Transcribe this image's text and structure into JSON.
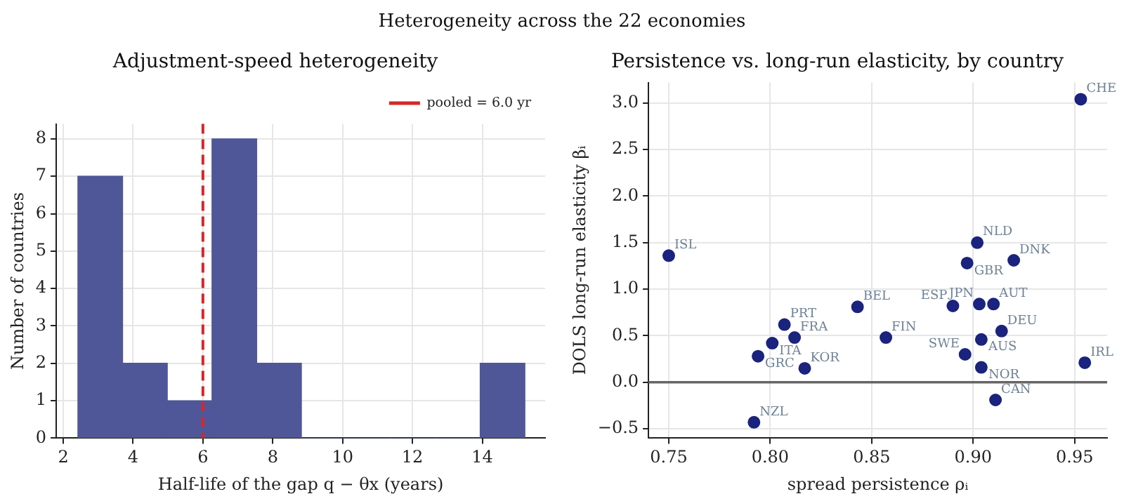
{
  "chart_data": [
    {
      "type": "other",
      "title": "Heterogeneity across the 22 economies"
    },
    {
      "type": "histogram",
      "title": "Adjustment-speed heterogeneity",
      "xlabel": "Half-life of the gap q − θx (years)",
      "ylabel": "Number of countries",
      "bins": [
        2.42,
        3.7,
        4.98,
        6.26,
        7.54,
        8.82,
        10.1,
        11.38,
        12.66,
        13.94,
        15.22
      ],
      "values": [
        7,
        2,
        1,
        8,
        2,
        0,
        0,
        0,
        0,
        2
      ],
      "color": "#4f5799",
      "xlim": [
        1.8,
        15.8
      ],
      "xticks": [
        2,
        4,
        6,
        8,
        10,
        12,
        14
      ],
      "ylim": [
        0,
        8.4
      ],
      "yticks": [
        0,
        1,
        2,
        3,
        4,
        5,
        6,
        7,
        8
      ],
      "ref_lines": [
        {
          "axis": "x",
          "value": 6.0,
          "label": "pooled = 6.0 yr",
          "color": "#d62728",
          "line_style": "dashed"
        }
      ],
      "grid": true,
      "legend": "top right"
    },
    {
      "type": "scatter",
      "title": "Persistence vs. long-run elasticity, by country",
      "xlabel": "spread persistence ρᵢ",
      "ylabel": "DOLS long-run elasticity βᵢ",
      "x": [
        0.953,
        0.75,
        0.902,
        0.897,
        0.92,
        0.843,
        0.89,
        0.903,
        0.91,
        0.807,
        0.812,
        0.801,
        0.794,
        0.857,
        0.914,
        0.904,
        0.896,
        0.904,
        0.955,
        0.817,
        0.911,
        0.792
      ],
      "values": [
        3.04,
        1.36,
        1.5,
        1.28,
        1.31,
        0.81,
        0.82,
        0.84,
        0.84,
        0.62,
        0.48,
        0.42,
        0.28,
        0.48,
        0.55,
        0.46,
        0.3,
        0.16,
        0.21,
        0.15,
        -0.19,
        -0.43
      ],
      "color": "#1a237e",
      "marker": "circle",
      "annotations": [
        {
          "text": "CHE",
          "x": 0.953,
          "y": 3.04
        },
        {
          "text": "ISL",
          "x": 0.75,
          "y": 1.36
        },
        {
          "text": "NLD",
          "x": 0.902,
          "y": 1.5
        },
        {
          "text": "GBR",
          "x": 0.897,
          "y": 1.28
        },
        {
          "text": "DNK",
          "x": 0.92,
          "y": 1.31
        },
        {
          "text": "BEL",
          "x": 0.843,
          "y": 0.81
        },
        {
          "text": "ESP",
          "x": 0.89,
          "y": 0.82
        },
        {
          "text": "JPN",
          "x": 0.903,
          "y": 0.84
        },
        {
          "text": "AUT",
          "x": 0.91,
          "y": 0.84
        },
        {
          "text": "PRT",
          "x": 0.807,
          "y": 0.62
        },
        {
          "text": "FRA",
          "x": 0.812,
          "y": 0.48
        },
        {
          "text": "ITA",
          "x": 0.801,
          "y": 0.42
        },
        {
          "text": "GRC",
          "x": 0.794,
          "y": 0.28
        },
        {
          "text": "FIN",
          "x": 0.857,
          "y": 0.48
        },
        {
          "text": "DEU",
          "x": 0.914,
          "y": 0.55
        },
        {
          "text": "AUS",
          "x": 0.904,
          "y": 0.46
        },
        {
          "text": "SWE",
          "x": 0.896,
          "y": 0.3
        },
        {
          "text": "NOR",
          "x": 0.904,
          "y": 0.16
        },
        {
          "text": "IRL",
          "x": 0.955,
          "y": 0.21
        },
        {
          "text": "KOR",
          "x": 0.817,
          "y": 0.15
        },
        {
          "text": "CAN",
          "x": 0.911,
          "y": -0.19
        },
        {
          "text": "NZL",
          "x": 0.792,
          "y": -0.43
        }
      ],
      "xlim": [
        0.74,
        0.966
      ],
      "xticks": [
        0.75,
        {
          "value": 0.8,
          "label": "0.80"
        },
        0.85,
        {
          "value": 0.9,
          "label": "0.90"
        },
        0.95
      ],
      "ylim": [
        -0.6,
        3.22
      ],
      "yticks": [
        {
          "value": -0.5,
          "label": "−0.5"
        },
        {
          "value": 0,
          "label": "0.0"
        },
        0.5,
        {
          "value": 1,
          "label": "1.0"
        },
        1.5,
        {
          "value": 2,
          "label": "2.0"
        },
        2.5,
        {
          "value": 3,
          "label": "3.0"
        }
      ],
      "ref_lines": [
        {
          "axis": "y",
          "value": 0,
          "color": "#666666",
          "line_style": "solid"
        }
      ],
      "grid": true
    }
  ]
}
